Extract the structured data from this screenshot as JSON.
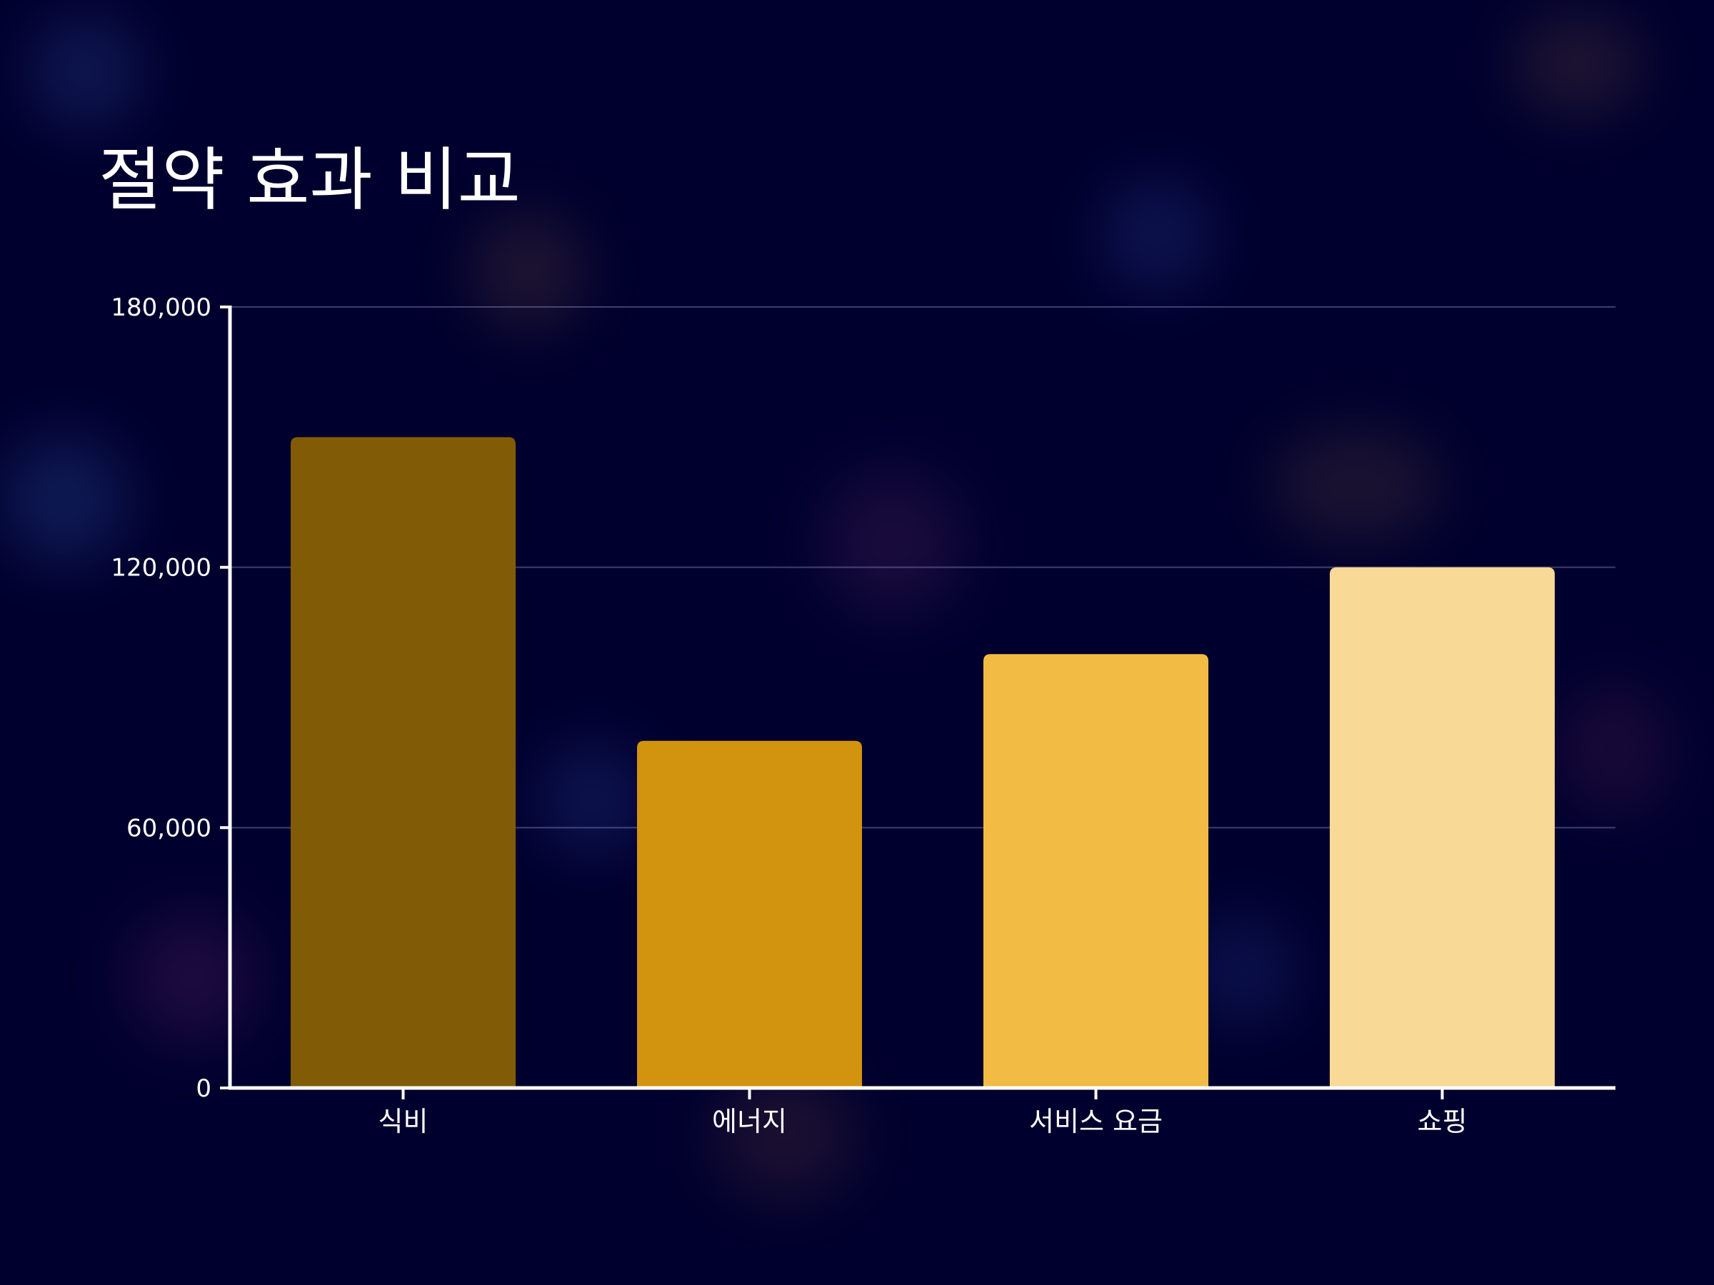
{
  "chart_data": {
    "type": "bar",
    "title": "절약 효과 비교",
    "categories": [
      "식비",
      "에너지",
      "서비스 요금",
      "쇼핑"
    ],
    "values": [
      150000,
      80000,
      100000,
      120000
    ],
    "ylim": [
      0,
      180000
    ],
    "yticks": [
      "0",
      "60,000",
      "120,000",
      "180,000"
    ],
    "grid": true,
    "colors": [
      "#825b06",
      "#d2940e",
      "#f2bc44",
      "#f8d995"
    ]
  }
}
